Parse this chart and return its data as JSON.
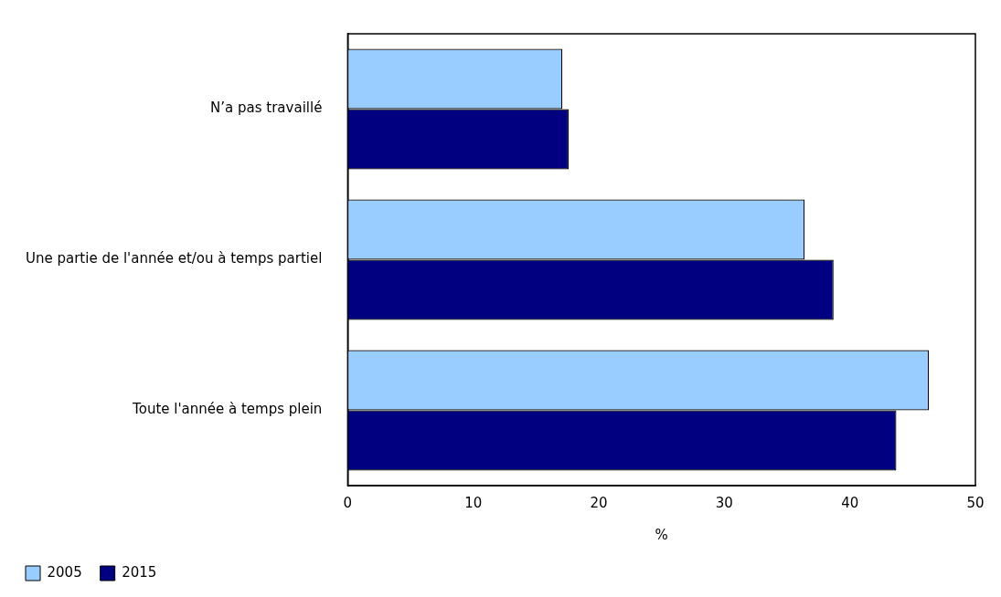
{
  "chart_data": {
    "type": "bar",
    "orientation": "horizontal",
    "xlabel": "%",
    "categories": [
      "N’a pas travaillé",
      "Une partie de l'année et/ou à temps partiel",
      "Toute l'année à temps plein"
    ],
    "series": [
      {
        "name": "2005",
        "color": "#99ccff",
        "values": [
          17.1,
          36.4,
          46.3
        ]
      },
      {
        "name": "2015",
        "color": "#000080",
        "values": [
          17.6,
          38.7,
          43.7
        ]
      }
    ],
    "xlim": [
      0,
      50
    ],
    "xticks": [
      0,
      10,
      20,
      30,
      40,
      50
    ],
    "grid": false,
    "legend": "bottom"
  }
}
